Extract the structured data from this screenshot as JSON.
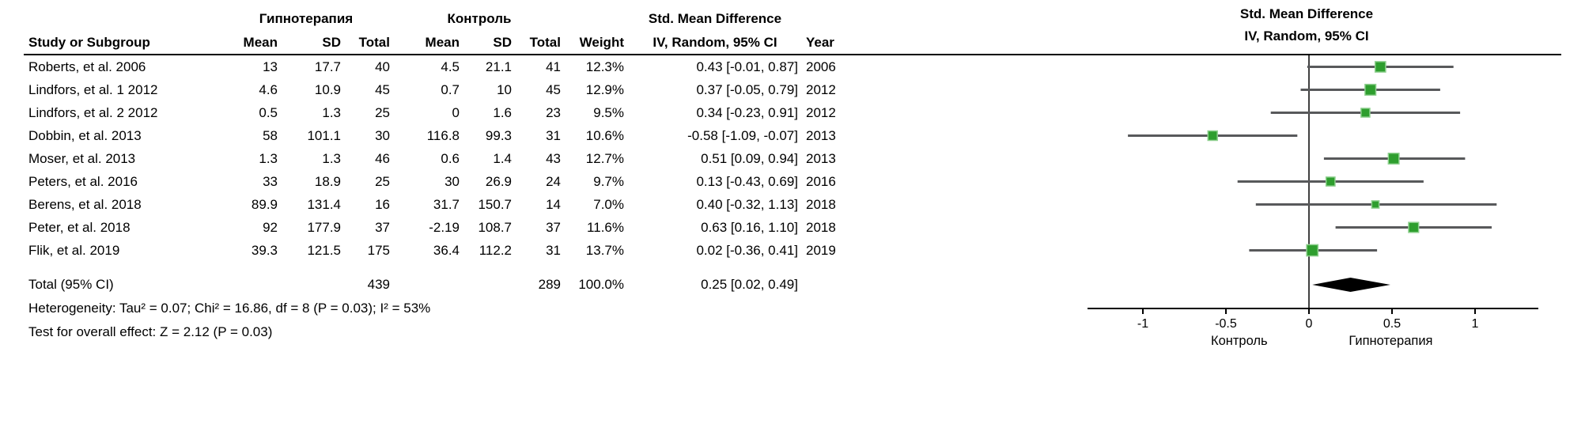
{
  "header": {
    "group_treatment": "Гипнотерапия",
    "group_control": "Контроль",
    "group_smd": "Std. Mean Difference",
    "plot_title_line1": "Std. Mean Difference",
    "plot_title_line2": "IV, Random, 95% CI",
    "col_study": "Study or Subgroup",
    "col_mean": "Mean",
    "col_sd": "SD",
    "col_total": "Total",
    "col_weight": "Weight",
    "col_ci": "IV, Random, 95% CI",
    "col_year": "Year"
  },
  "chart_data": {
    "type": "forest",
    "title": "Std. Mean Difference, IV, Random, 95% CI",
    "x_axis": {
      "ticks": [
        -1,
        -0.5,
        0,
        0.5,
        1
      ],
      "min": -1.3,
      "max": 1.4,
      "left_label": "Контроль",
      "right_label": "Гипнотерапия"
    },
    "studies": [
      {
        "study": "Roberts, et al. 2006",
        "t_mean": "13",
        "t_sd": "17.7",
        "t_n": "40",
        "c_mean": "4.5",
        "c_sd": "21.1",
        "c_n": "41",
        "weight": "12.3%",
        "est": 0.43,
        "lo": -0.01,
        "hi": 0.87,
        "ci_text": "0.43 [-0.01, 0.87]",
        "year": "2006"
      },
      {
        "study": "Lindfors, et al. 1 2012",
        "t_mean": "4.6",
        "t_sd": "10.9",
        "t_n": "45",
        "c_mean": "0.7",
        "c_sd": "10",
        "c_n": "45",
        "weight": "12.9%",
        "est": 0.37,
        "lo": -0.05,
        "hi": 0.79,
        "ci_text": "0.37 [-0.05, 0.79]",
        "year": "2012"
      },
      {
        "study": "Lindfors, et al. 2 2012",
        "t_mean": "0.5",
        "t_sd": "1.3",
        "t_n": "25",
        "c_mean": "0",
        "c_sd": "1.6",
        "c_n": "23",
        "weight": "9.5%",
        "est": 0.34,
        "lo": -0.23,
        "hi": 0.91,
        "ci_text": "0.34 [-0.23, 0.91]",
        "year": "2012"
      },
      {
        "study": "Dobbin, et al. 2013",
        "t_mean": "58",
        "t_sd": "101.1",
        "t_n": "30",
        "c_mean": "116.8",
        "c_sd": "99.3",
        "c_n": "31",
        "weight": "10.6%",
        "est": -0.58,
        "lo": -1.09,
        "hi": -0.07,
        "ci_text": "-0.58 [-1.09, -0.07]",
        "year": "2013"
      },
      {
        "study": "Moser, et al. 2013",
        "t_mean": "1.3",
        "t_sd": "1.3",
        "t_n": "46",
        "c_mean": "0.6",
        "c_sd": "1.4",
        "c_n": "43",
        "weight": "12.7%",
        "est": 0.51,
        "lo": 0.09,
        "hi": 0.94,
        "ci_text": "0.51 [0.09, 0.94]",
        "year": "2013"
      },
      {
        "study": "Peters, et al. 2016",
        "t_mean": "33",
        "t_sd": "18.9",
        "t_n": "25",
        "c_mean": "30",
        "c_sd": "26.9",
        "c_n": "24",
        "weight": "9.7%",
        "est": 0.13,
        "lo": -0.43,
        "hi": 0.69,
        "ci_text": "0.13 [-0.43, 0.69]",
        "year": "2016"
      },
      {
        "study": "Berens, et al. 2018",
        "t_mean": "89.9",
        "t_sd": "131.4",
        "t_n": "16",
        "c_mean": "31.7",
        "c_sd": "150.7",
        "c_n": "14",
        "weight": "7.0%",
        "est": 0.4,
        "lo": -0.32,
        "hi": 1.13,
        "ci_text": "0.40 [-0.32, 1.13]",
        "year": "2018"
      },
      {
        "study": "Peter, et al. 2018",
        "t_mean": "92",
        "t_sd": "177.9",
        "t_n": "37",
        "c_mean": "-2.19",
        "c_sd": "108.7",
        "c_n": "37",
        "weight": "11.6%",
        "est": 0.63,
        "lo": 0.16,
        "hi": 1.1,
        "ci_text": "0.63 [0.16, 1.10]",
        "year": "2018"
      },
      {
        "study": "Flik, et al. 2019",
        "t_mean": "39.3",
        "t_sd": "121.5",
        "t_n": "175",
        "c_mean": "36.4",
        "c_sd": "112.2",
        "c_n": "31",
        "weight": "13.7%",
        "est": 0.02,
        "lo": -0.36,
        "hi": 0.41,
        "ci_text": "0.02 [-0.36, 0.41]",
        "year": "2019"
      }
    ],
    "total": {
      "label": "Total (95% CI)",
      "t_n": "439",
      "c_n": "289",
      "weight": "100.0%",
      "est": 0.25,
      "lo": 0.02,
      "hi": 0.49,
      "ci_text": "0.25 [0.02, 0.49]"
    },
    "heterogeneity": "Heterogeneity: Tau² = 0.07; Chi² = 16.86, df = 8 (P = 0.03); I² = 53%",
    "overall_effect": "Test for overall effect: Z = 2.12 (P = 0.03)"
  },
  "colors": {
    "marker": "#2E9E2E",
    "marker_edge": "#8FD08F",
    "ci_line": "#58595B",
    "diamond": "#000000",
    "axis": "#000000",
    "zero_line": "#404040"
  }
}
